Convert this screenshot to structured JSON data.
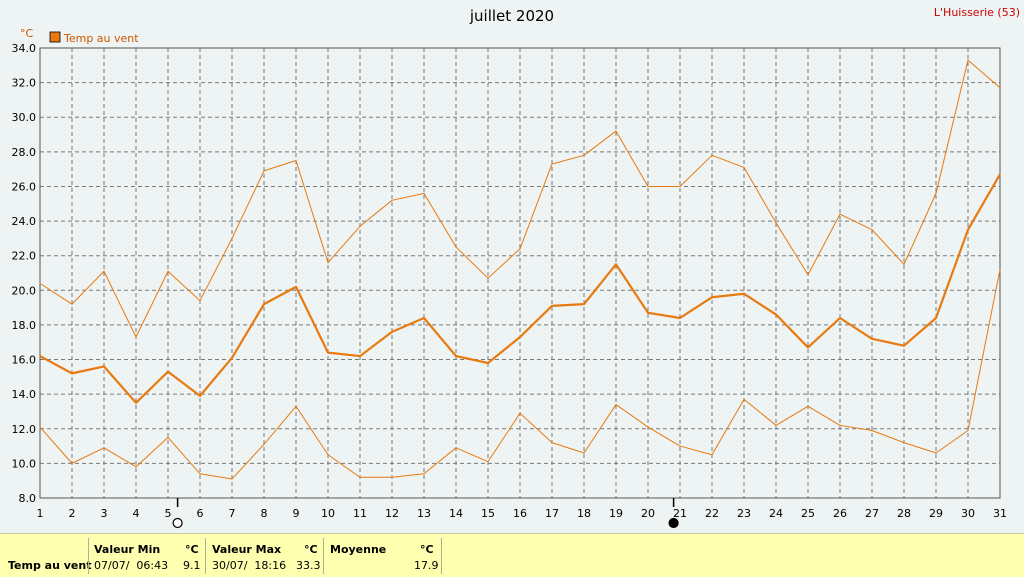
{
  "chart_data": {
    "type": "line",
    "title": "juillet 2020",
    "station": "L'Huisserie (53)",
    "ylabel": "°C",
    "ylim": [
      8,
      34
    ],
    "yticks": [
      "8.0",
      "10.0",
      "12.0",
      "14.0",
      "16.0",
      "18.0",
      "20.0",
      "22.0",
      "24.0",
      "26.0",
      "28.0",
      "30.0",
      "32.0",
      "34.0"
    ],
    "x": [
      1,
      2,
      3,
      4,
      5,
      6,
      7,
      8,
      9,
      10,
      11,
      12,
      13,
      14,
      15,
      16,
      17,
      18,
      19,
      20,
      21,
      22,
      23,
      24,
      25,
      26,
      27,
      28,
      29,
      30,
      31
    ],
    "grid": true,
    "legend": {
      "position": "top-left",
      "label": "Temp au vent",
      "color": "#e87a10"
    },
    "moon_markers": [
      {
        "day": 5.3,
        "phase": "full-moon"
      },
      {
        "day": 20.8,
        "phase": "new-moon"
      }
    ],
    "series": [
      {
        "name": "Temp au vent",
        "color": "#e87a10",
        "values": [
          16.2,
          15.2,
          15.6,
          13.5,
          15.3,
          13.9,
          16.1,
          19.2,
          20.2,
          16.4,
          16.2,
          17.6,
          18.4,
          16.2,
          15.8,
          17.3,
          19.1,
          19.2,
          21.5,
          18.7,
          18.4,
          19.6,
          19.8,
          18.6,
          16.7,
          18.4,
          17.2,
          16.8,
          18.4,
          23.5,
          26.7
        ]
      },
      {
        "color": "#e87a10",
        "values": [
          20.4,
          19.2,
          21.1,
          17.3,
          21.1,
          19.4,
          23.0,
          26.9,
          27.5,
          21.6,
          23.7,
          25.2,
          25.6,
          22.5,
          20.7,
          22.4,
          27.3,
          27.8,
          29.2,
          26.0,
          26.0,
          27.8,
          27.1,
          23.9,
          20.9,
          24.4,
          23.5,
          21.5,
          25.6,
          33.3,
          31.7
        ]
      },
      {
        "color": "#e87a10",
        "values": [
          12.1,
          10.0,
          10.9,
          9.8,
          11.5,
          9.4,
          9.1,
          11.1,
          13.3,
          10.5,
          9.2,
          9.2,
          9.4,
          10.9,
          10.1,
          12.9,
          11.2,
          10.6,
          13.4,
          12.1,
          11.0,
          10.5,
          13.7,
          12.2,
          13.3,
          12.2,
          11.9,
          11.2,
          10.6,
          11.9,
          21.2
        ]
      }
    ]
  },
  "stats": {
    "row_label": "Temp au vent",
    "min_header": "Valeur Min",
    "min_unit": "°C",
    "min_date": "07/07/  06:43",
    "min_value": "9.1",
    "max_header": "Valeur Max",
    "max_unit": "°C",
    "max_date": "30/07/  18:16",
    "max_value": "33.3",
    "avg_header": "Moyenne",
    "avg_unit": "°C",
    "avg_value": "17.9"
  }
}
